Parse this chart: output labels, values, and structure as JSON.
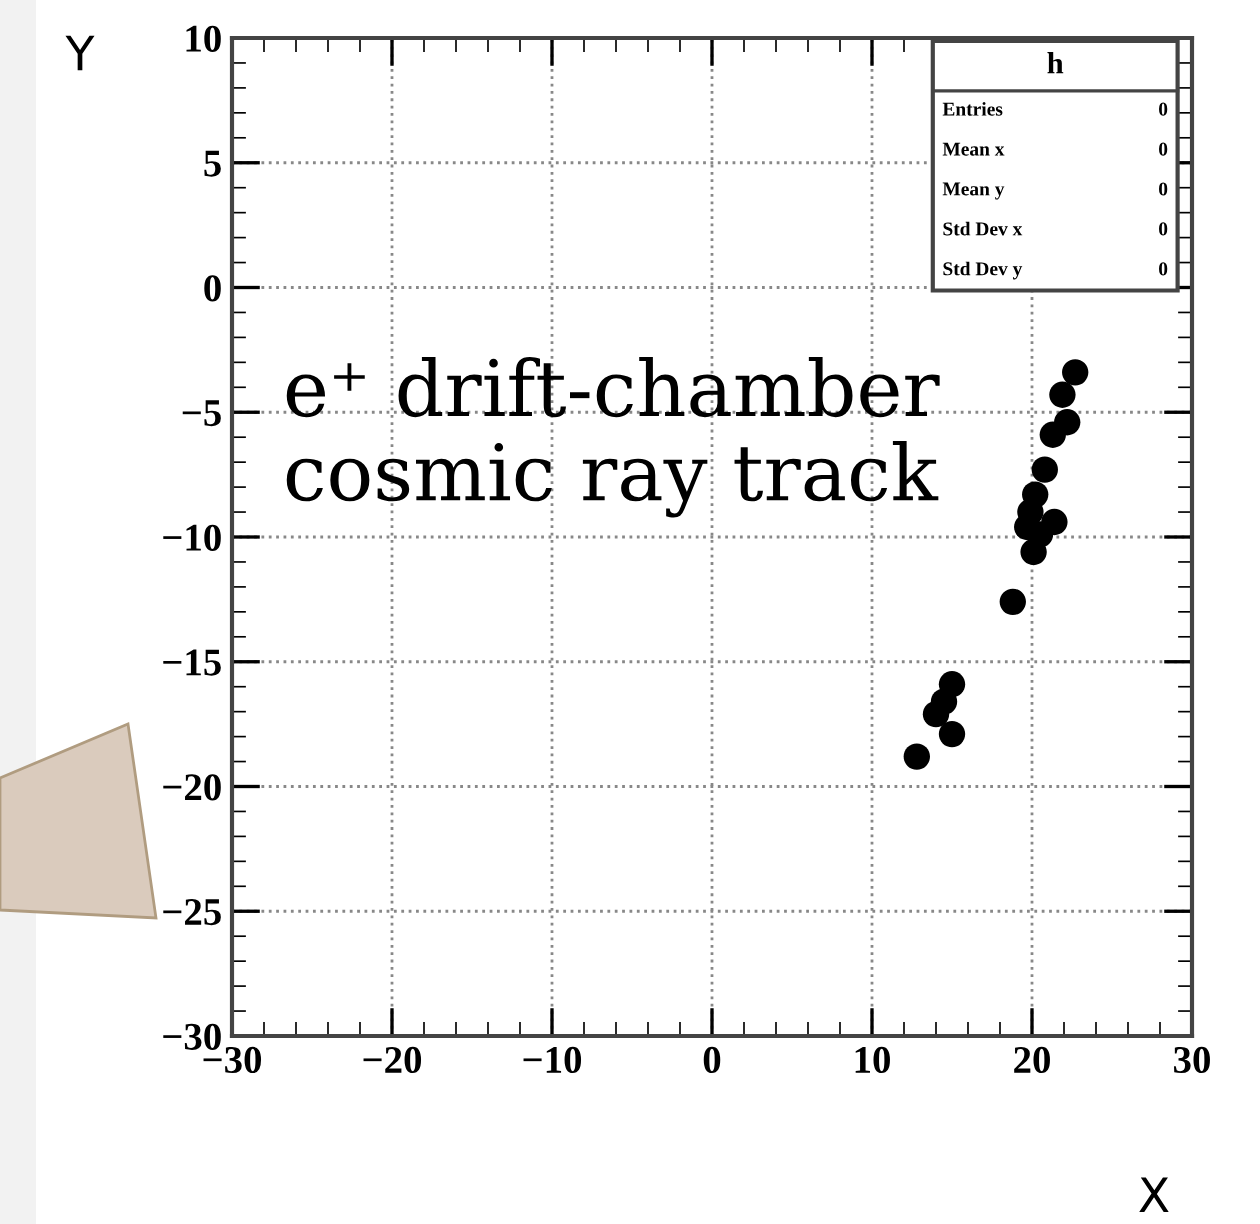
{
  "chart_data": {
    "type": "scatter",
    "xlabel": "X",
    "ylabel": "Y",
    "x": [
      22.7,
      21.9,
      22.2,
      21.3,
      20.8,
      20.2,
      19.9,
      21.4,
      19.7,
      20.5,
      20.1,
      18.8,
      15.0,
      14.5,
      14.0,
      15.0,
      12.8
    ],
    "values": [
      -3.4,
      -4.3,
      -5.4,
      -5.9,
      -7.3,
      -8.3,
      -9.0,
      -9.4,
      -9.6,
      -9.9,
      -10.6,
      -12.6,
      -15.9,
      -16.6,
      -17.1,
      -17.9,
      -18.8
    ],
    "color": "#000000",
    "marker": "circle",
    "xlim": [
      -30,
      30
    ],
    "xticks": [
      {
        "value": -30,
        "label": "−30"
      },
      {
        "value": -20,
        "label": "−20"
      },
      {
        "value": -10,
        "label": "−10"
      },
      0,
      10,
      20,
      30
    ],
    "ylim": [
      -30,
      10
    ],
    "yticks": [
      {
        "value": -30,
        "label": "−30"
      },
      {
        "value": -25,
        "label": "−25"
      },
      {
        "value": -20,
        "label": "−20"
      },
      {
        "value": -15,
        "label": "−15"
      },
      {
        "value": -10,
        "label": "−10"
      },
      {
        "value": -5,
        "label": "−5"
      },
      0,
      5,
      10
    ],
    "grid": true,
    "annotations": [
      "e⁺ drift-chamber\ncosmic ray track",
      "h",
      "Entries",
      "0",
      "Mean x",
      "0",
      "Mean y",
      "0",
      "Std Dev x",
      "0",
      "Std Dev y",
      "0"
    ]
  }
}
